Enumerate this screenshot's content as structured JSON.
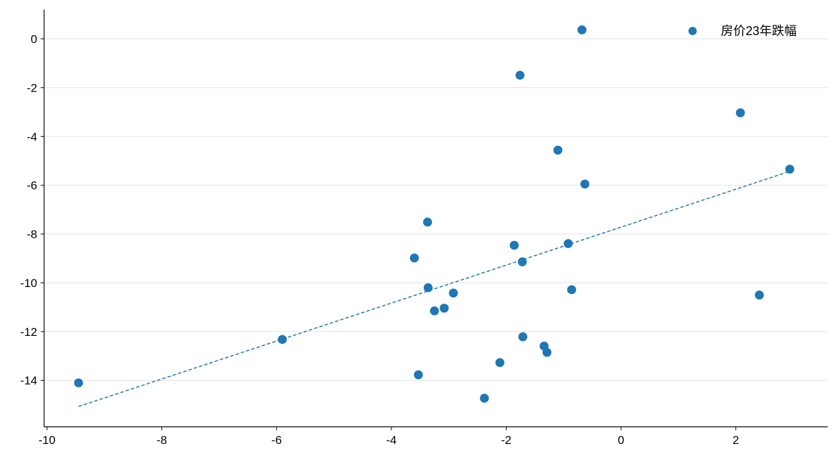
{
  "chart_data": {
    "type": "scatter",
    "title": "",
    "xlabel": "",
    "ylabel": "",
    "xlim": [
      -10.05,
      3.6
    ],
    "ylim": [
      -15.9,
      1.2
    ],
    "x_ticks": [
      -10,
      -8,
      -6,
      -4,
      -2,
      0,
      2
    ],
    "x_tick_labels": [
      "-10",
      "-8",
      "-6",
      "-4",
      "-2",
      "0",
      "2"
    ],
    "y_ticks": [
      0,
      -2,
      -4,
      -6,
      -8,
      -10,
      -12,
      -14
    ],
    "y_tick_labels": [
      "0",
      "-2",
      "-4",
      "-6",
      "-8",
      "-10",
      "-12",
      "-14"
    ],
    "grid": "horizontal",
    "legend_position": "top-right",
    "series": [
      {
        "name": "房价23年跌幅",
        "color": "#1f77b4",
        "points": [
          {
            "x": -9.45,
            "y": -14.1
          },
          {
            "x": -5.9,
            "y": -12.32
          },
          {
            "x": -3.6,
            "y": -8.98
          },
          {
            "x": -3.53,
            "y": -13.77
          },
          {
            "x": -3.37,
            "y": -7.51
          },
          {
            "x": -3.36,
            "y": -10.2
          },
          {
            "x": -3.25,
            "y": -11.15
          },
          {
            "x": -3.08,
            "y": -11.04
          },
          {
            "x": -2.92,
            "y": -10.42
          },
          {
            "x": -2.38,
            "y": -14.73
          },
          {
            "x": -2.11,
            "y": -13.27
          },
          {
            "x": -1.86,
            "y": -8.46
          },
          {
            "x": -1.76,
            "y": -1.49
          },
          {
            "x": -1.72,
            "y": -9.14
          },
          {
            "x": -1.71,
            "y": -12.21
          },
          {
            "x": -1.34,
            "y": -12.59
          },
          {
            "x": -1.29,
            "y": -12.85
          },
          {
            "x": -1.1,
            "y": -4.56
          },
          {
            "x": -0.92,
            "y": -8.39
          },
          {
            "x": -0.86,
            "y": -10.28
          },
          {
            "x": -0.68,
            "y": 0.37
          },
          {
            "x": -0.63,
            "y": -5.95
          },
          {
            "x": 2.08,
            "y": -3.03
          },
          {
            "x": 2.41,
            "y": -10.5
          },
          {
            "x": 2.94,
            "y": -5.34
          }
        ]
      }
    ],
    "trendline": {
      "style": "dashed",
      "color": "#1f77b4",
      "x": [
        -9.45,
        2.94
      ],
      "y": [
        -15.07,
        -5.43
      ]
    }
  }
}
